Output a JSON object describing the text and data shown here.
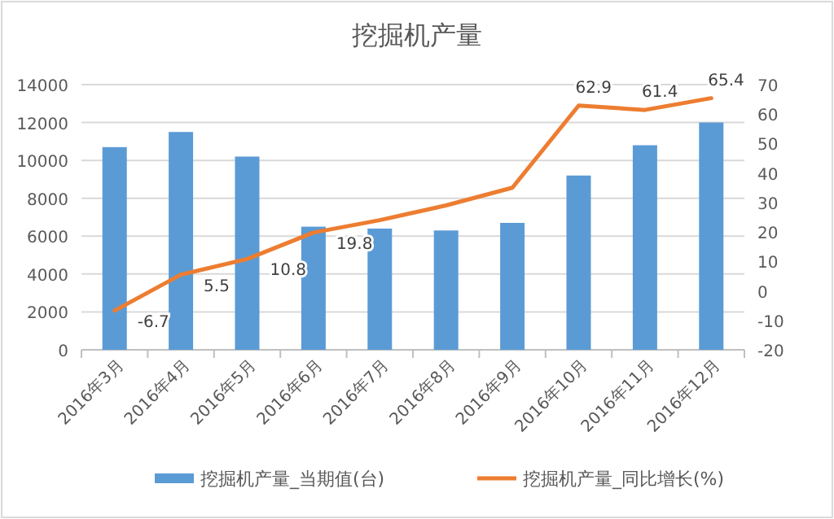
{
  "chart_data": {
    "type": "bar",
    "title": "挖掘机产量",
    "categories": [
      "2016年3月",
      "2016年4月",
      "2016年5月",
      "2016年6月",
      "2016年7月",
      "2016年8月",
      "2016年9月",
      "2016年10月",
      "2016年11月",
      "2016年12月"
    ],
    "series": [
      {
        "name": "挖掘机产量_当期值(台)",
        "color": "#5b9bd5",
        "values": [
          10700,
          11500,
          10200,
          6500,
          6400,
          6300,
          6700,
          9200,
          10800,
          12000
        ]
      },
      {
        "name": "挖掘机产量_同比增长(%)",
        "type": "line",
        "axis": "y2",
        "color": "#ed7d31",
        "values": [
          -6.7,
          5.5,
          10.8,
          19.8,
          24,
          29,
          35,
          62.9,
          61.4,
          65.4
        ],
        "value_labels": [
          "-6.7",
          "5.5",
          "10.8",
          "19.8",
          null,
          null,
          null,
          "62.9",
          "61.4",
          "65.4"
        ]
      }
    ],
    "ylim": [
      0,
      14000
    ],
    "yticks": [
      0,
      2000,
      4000,
      6000,
      8000,
      10000,
      12000,
      14000
    ],
    "y2lim": [
      -20,
      70
    ],
    "y2ticks": [
      -20,
      -10,
      0,
      10,
      20,
      30,
      40,
      50,
      60,
      70
    ],
    "grid": "y",
    "legend": "bottom"
  }
}
